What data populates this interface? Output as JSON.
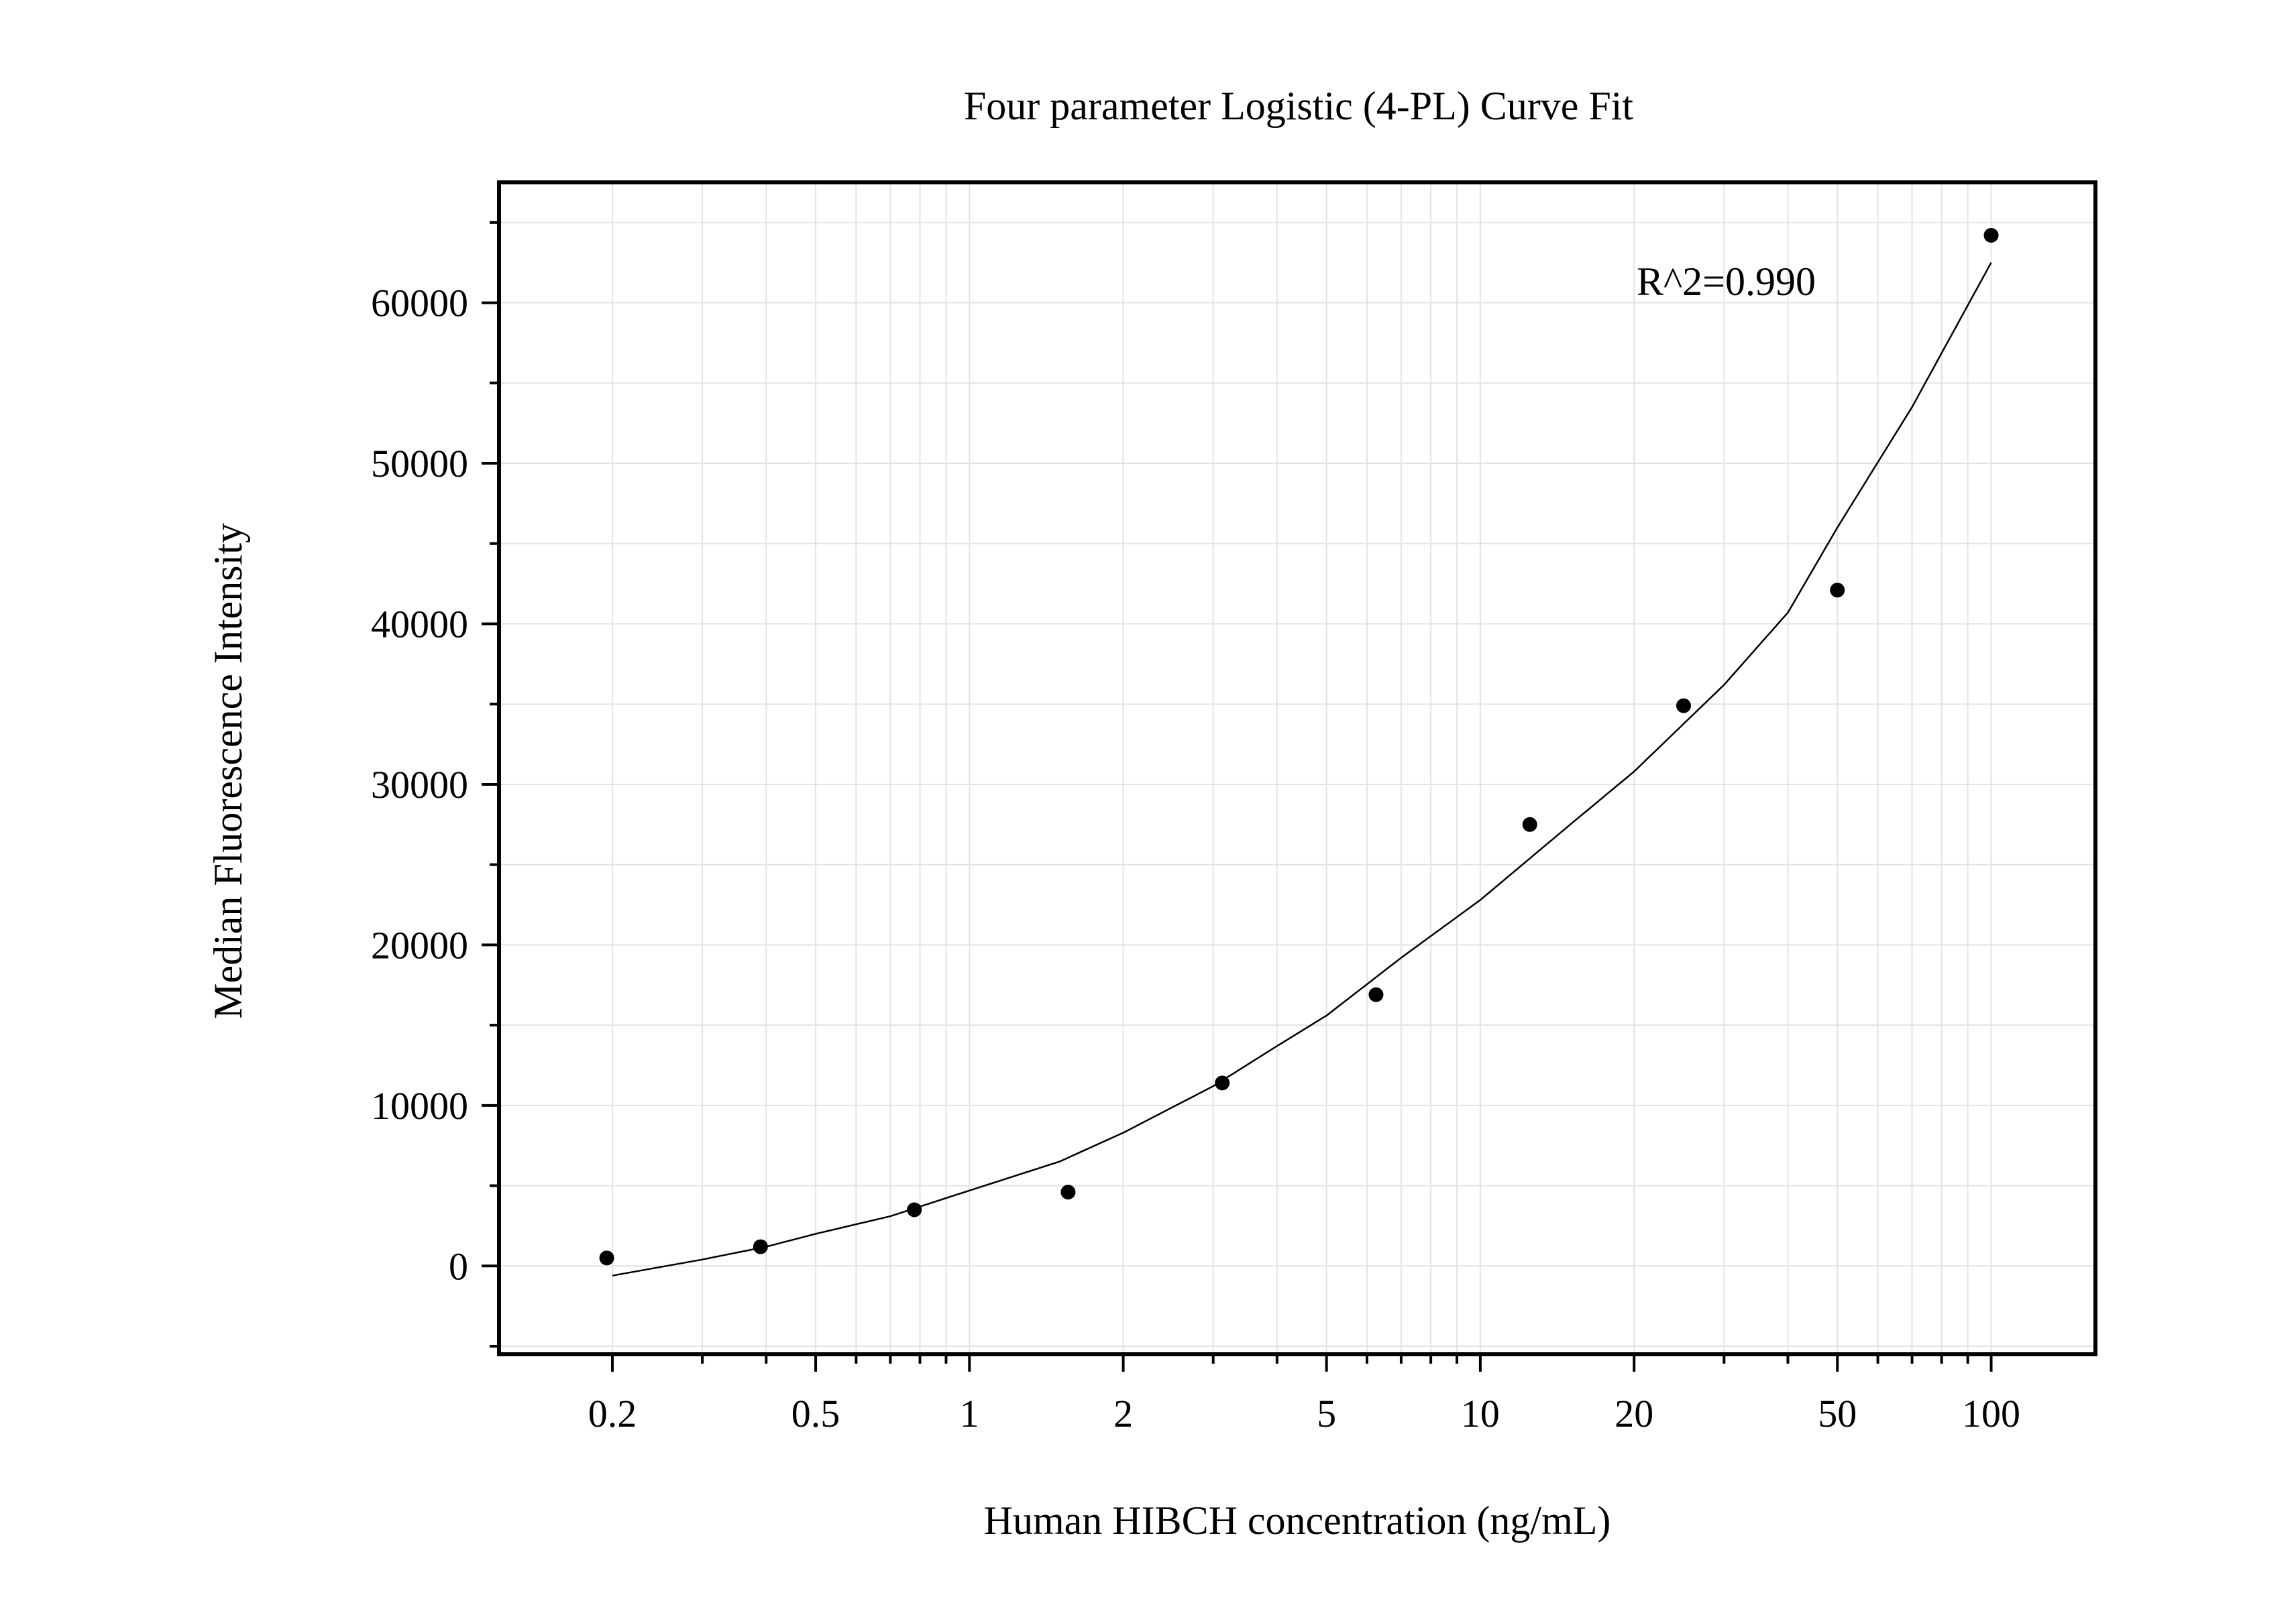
{
  "chart_data": {
    "type": "scatter",
    "title": "Four parameter Logistic (4-PL) Curve Fit",
    "xlabel": "Human HIBCH concentration (ng/mL)",
    "ylabel": "Median Fluorescence Intensity",
    "x_scale": "log",
    "xlim": [
      0.12,
      160
    ],
    "ylim": [
      -5500,
      67500
    ],
    "x_tick_values": [
      0.2,
      0.5,
      1,
      2,
      5,
      10,
      20,
      50,
      100
    ],
    "x_tick_labels": [
      "0.2",
      "0.5",
      "1",
      "2",
      "5",
      "10",
      "20",
      "50",
      "100"
    ],
    "y_tick_values": [
      0,
      10000,
      20000,
      30000,
      40000,
      50000,
      60000
    ],
    "y_tick_labels": [
      "0",
      "10000",
      "20000",
      "30000",
      "40000",
      "50000",
      "60000"
    ],
    "grid": true,
    "annotation": "R^2=0.990",
    "points": {
      "x": [
        0.195,
        0.39,
        0.78,
        1.56,
        3.125,
        6.25,
        12.5,
        25,
        50,
        100
      ],
      "y": [
        500,
        1200,
        3500,
        4600,
        11400,
        16900,
        27500,
        34900,
        42100,
        64200
      ]
    },
    "fit_curve": {
      "x": [
        0.2,
        0.3,
        0.4,
        0.5,
        0.7,
        1,
        1.5,
        2,
        3,
        4,
        5,
        7,
        10,
        15,
        20,
        30,
        40,
        50,
        70,
        100
      ],
      "y": [
        -600,
        400,
        1200,
        2000,
        3100,
        4700,
        6500,
        8300,
        11200,
        13700,
        15600,
        19200,
        22800,
        27500,
        30800,
        36200,
        40700,
        46000,
        53500,
        62500
      ]
    }
  }
}
